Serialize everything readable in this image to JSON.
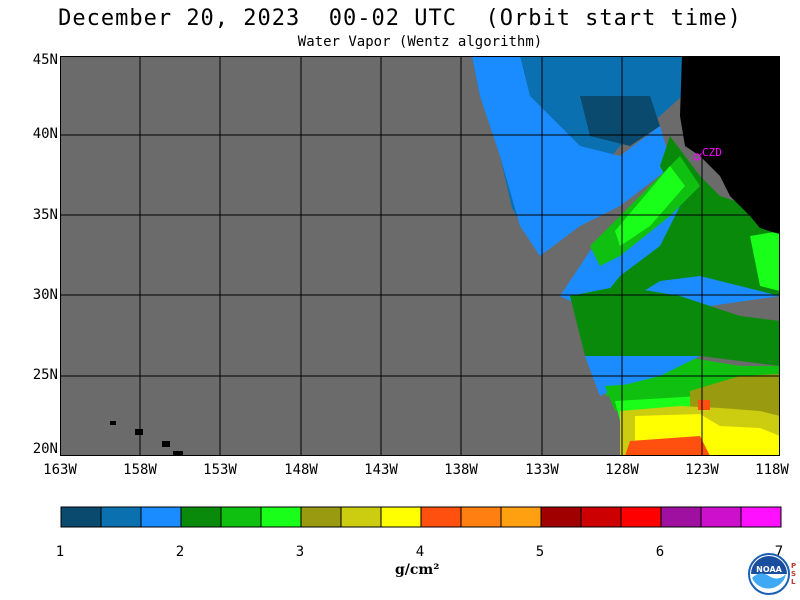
{
  "title": "December 20, 2023  00-02 UTC  (Orbit start time)",
  "subtitle": "Water Vapor (Wentz algorithm)",
  "lat_labels": [
    "45N",
    "40N",
    "35N",
    "30N",
    "25N",
    "20N"
  ],
  "lon_labels": [
    "163W",
    "158W",
    "153W",
    "148W",
    "143W",
    "138W",
    "133W",
    "128W",
    "123W",
    "118W"
  ],
  "station_label": "CZD",
  "colorbar": {
    "ticks": [
      "1",
      "2",
      "3",
      "4",
      "5",
      "6",
      "7"
    ],
    "units": "g/cm²",
    "colors": [
      "#0a4a6e",
      "#0b70b0",
      "#1a8cff",
      "#0a8a0a",
      "#10c010",
      "#1aff1a",
      "#9a9a10",
      "#cccc10",
      "#ffff00",
      "#ff5010",
      "#ff8010",
      "#ffa010",
      "#a00000",
      "#cc0000",
      "#ff0000",
      "#a010a0",
      "#cc10cc",
      "#ff10ff"
    ]
  },
  "map_colors": {
    "no_data": "#6b6b6b",
    "land": "#000000",
    "grid": "#000000",
    "station": "#ff00ff"
  },
  "logo": {
    "text": "NOAA",
    "side_text": [
      "P",
      "S",
      "L"
    ]
  }
}
